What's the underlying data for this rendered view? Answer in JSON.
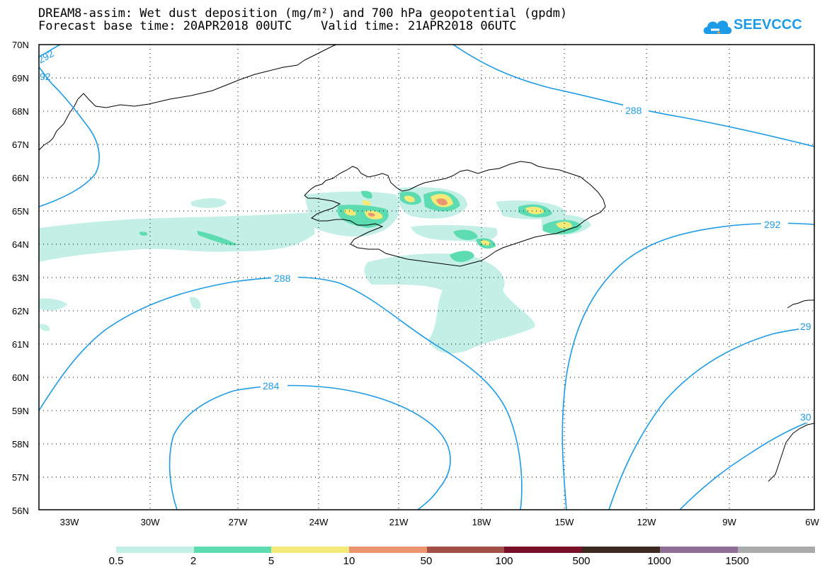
{
  "title_line1": "DREAM8-assim: Wet dust deposition (mg/m²) and 700 hPa geopotential (gpdm)",
  "title_line2": "Forecast base time: 20APR2018 00UTC    Valid time: 21APR2018 06UTC",
  "logo_text": "SEEVCCC",
  "lat_labels": [
    "70N",
    "69N",
    "68N",
    "67N",
    "66N",
    "65N",
    "64N",
    "63N",
    "62N",
    "61N",
    "60N",
    "59N",
    "58N",
    "57N",
    "56N"
  ],
  "lon_labels": [
    "33W",
    "30W",
    "27W",
    "24W",
    "21W",
    "18W",
    "15W",
    "12W",
    "9W",
    "6W"
  ],
  "contour_labels": {
    "c288_top": "288",
    "c292_right": "292",
    "c288_mid": "288",
    "c284": "284",
    "c292_topleft": "292",
    "c92_topleft": "92",
    "c29_right": "29",
    "c30_right": "30"
  },
  "legend": {
    "colors": [
      "#c3efe6",
      "#5cdcb0",
      "#f3ea7a",
      "#eb9570",
      "#a14f47",
      "#7a0f2a",
      "#3a2a20",
      "#8f6f96",
      "#ababab"
    ],
    "labels": [
      "0.5",
      "2",
      "5",
      "10",
      "50",
      "100",
      "500",
      "1000",
      "1500"
    ]
  },
  "colors": {
    "contour": "#1e9be6",
    "dust_light": "#c3efe6",
    "dust_2": "#5cdcb0",
    "dust_5": "#f3ea7a",
    "dust_10": "#eb9570"
  }
}
